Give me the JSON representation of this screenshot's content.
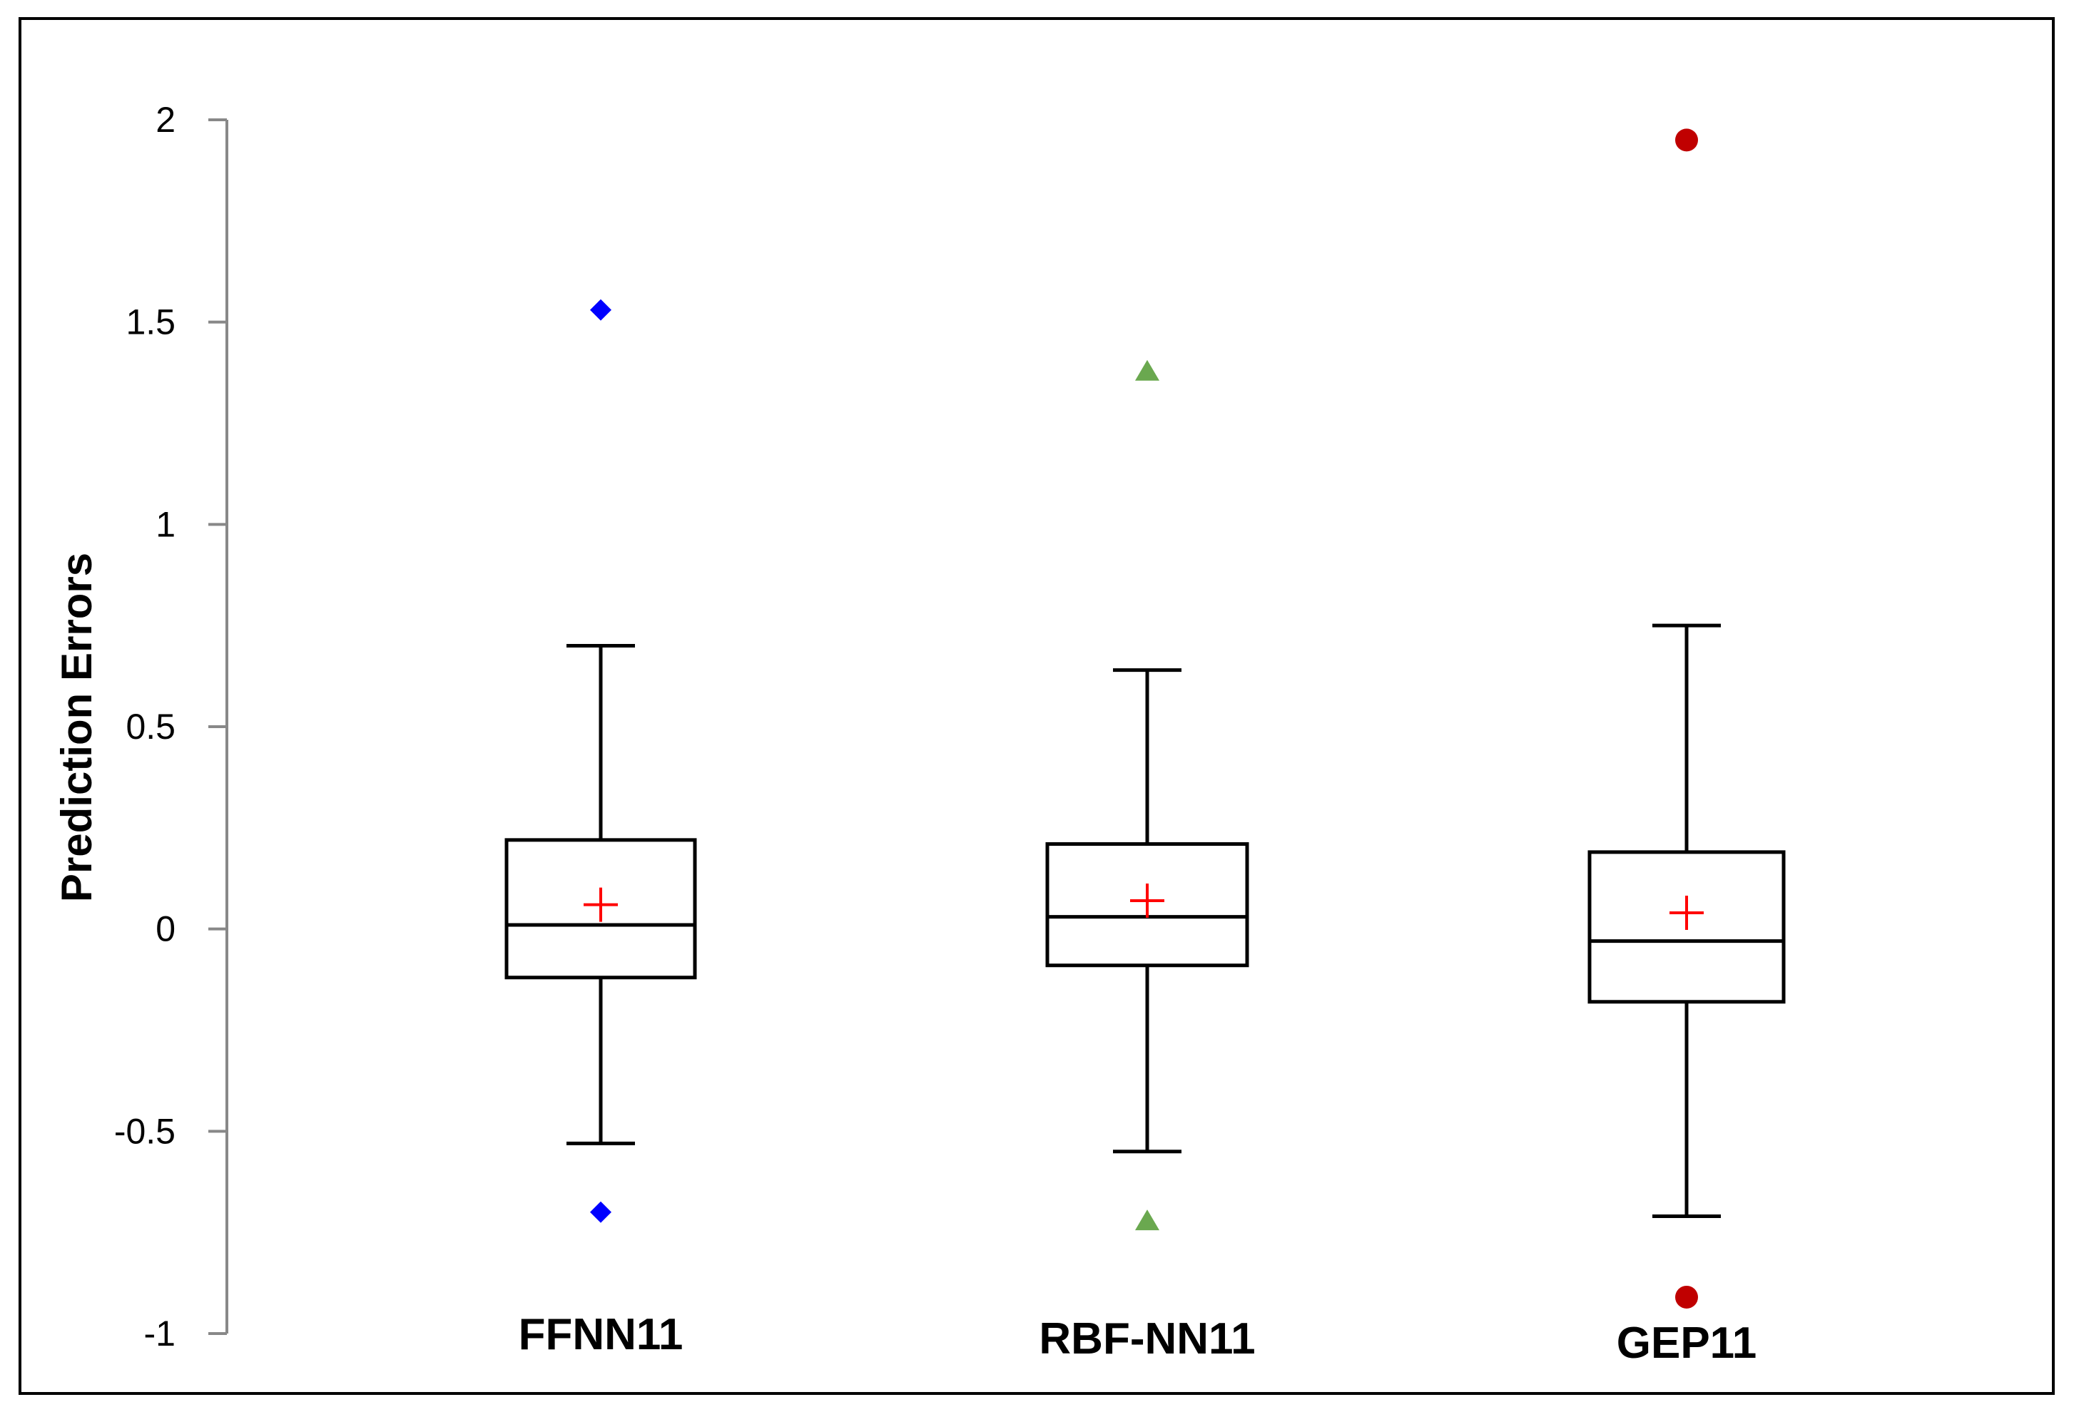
{
  "chart_data": {
    "type": "boxplot",
    "title": "",
    "xlabel": "",
    "ylabel": "Prediction Errors",
    "ylim": [
      -1,
      2
    ],
    "yticks": [
      -1,
      -0.5,
      0,
      0.5,
      1,
      1.5,
      2
    ],
    "ytick_labels": [
      "-1",
      "-0.5",
      "0",
      "0.5",
      "1",
      "1.5",
      "2"
    ],
    "grid": false,
    "legend": "none",
    "categories": [
      "FFNN11",
      "RBF-NN11",
      "GEP11"
    ],
    "series": [
      {
        "category": "FFNN11",
        "whisker_low": -0.53,
        "q1": -0.12,
        "median": 0.01,
        "q3": 0.22,
        "whisker_high": 0.7,
        "mean": 0.06,
        "outliers": [
          1.53,
          -0.7
        ],
        "marker": "diamond",
        "color": "#0000ff"
      },
      {
        "category": "RBF-NN11",
        "whisker_low": -0.55,
        "q1": -0.09,
        "median": 0.03,
        "q3": 0.21,
        "whisker_high": 0.64,
        "mean": 0.07,
        "outliers": [
          1.38,
          -0.72
        ],
        "marker": "triangle",
        "color": "#6aa84f"
      },
      {
        "category": "GEP11",
        "whisker_low": -0.71,
        "q1": -0.18,
        "median": -0.03,
        "q3": 0.19,
        "whisker_high": 0.75,
        "mean": 0.04,
        "outliers": [
          1.95,
          -0.91
        ],
        "marker": "circle",
        "color": "#c00000"
      }
    ],
    "mean_marker_color": "#ff0000"
  }
}
